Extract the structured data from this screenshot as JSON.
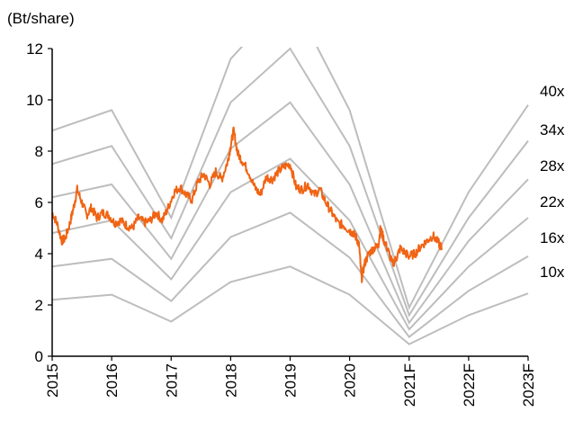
{
  "chart_data": {
    "type": "line",
    "title": "",
    "unit_label": "(Bt/share)",
    "xlabel": "",
    "ylabel": "",
    "ylim": [
      0,
      12
    ],
    "yticks": [
      0,
      2,
      4,
      6,
      8,
      10,
      12
    ],
    "categories": [
      "2015",
      "2016",
      "2017",
      "2018",
      "2019",
      "2020",
      "2021F",
      "2022F",
      "2023F"
    ],
    "grid": false,
    "legend": "none",
    "colors": {
      "price": "#f06414",
      "bands": "#bdbdbd",
      "axis": "#000000"
    },
    "pe_bands": [
      {
        "name": "40x",
        "values": [
          8.8,
          9.6,
          5.4,
          11.6,
          14.1,
          9.6,
          1.9,
          6.4,
          9.8
        ]
      },
      {
        "name": "34x",
        "values": [
          7.5,
          8.2,
          4.6,
          9.9,
          12.0,
          8.2,
          1.6,
          5.4,
          8.4
        ]
      },
      {
        "name": "28x",
        "values": [
          6.2,
          6.7,
          3.8,
          8.1,
          9.9,
          6.7,
          1.3,
          4.5,
          6.9
        ]
      },
      {
        "name": "22x",
        "values": [
          4.8,
          5.3,
          3.0,
          6.4,
          7.7,
          5.3,
          1.05,
          3.5,
          5.4
        ]
      },
      {
        "name": "16x",
        "values": [
          3.5,
          3.8,
          2.15,
          4.65,
          5.6,
          3.85,
          0.75,
          2.55,
          3.9
        ]
      },
      {
        "name": "10x",
        "values": [
          2.2,
          2.4,
          1.35,
          2.9,
          3.5,
          2.4,
          0.47,
          1.6,
          2.45
        ]
      }
    ],
    "price_series": {
      "x": [
        2015.0,
        2015.08,
        2015.16,
        2015.22,
        2015.3,
        2015.36,
        2015.42,
        2015.5,
        2015.58,
        2015.66,
        2015.75,
        2015.85,
        2015.95,
        2016.05,
        2016.15,
        2016.25,
        2016.35,
        2016.45,
        2016.55,
        2016.65,
        2016.75,
        2016.85,
        2016.95,
        2017.05,
        2017.15,
        2017.25,
        2017.35,
        2017.45,
        2017.55,
        2017.65,
        2017.75,
        2017.85,
        2017.95,
        2018.0,
        2018.05,
        2018.12,
        2018.2,
        2018.3,
        2018.4,
        2018.5,
        2018.6,
        2018.7,
        2018.8,
        2018.9,
        2019.0,
        2019.1,
        2019.2,
        2019.3,
        2019.4,
        2019.5,
        2019.6,
        2019.7,
        2019.8,
        2019.9,
        2020.0,
        2020.06,
        2020.12,
        2020.16,
        2020.2,
        2020.25,
        2020.32,
        2020.4,
        2020.48,
        2020.52,
        2020.58,
        2020.65,
        2020.72,
        2020.78,
        2020.85,
        2020.95,
        2021.0,
        2021.1,
        2021.2,
        2021.3,
        2021.4,
        2021.5,
        2021.55
      ],
      "y": [
        5.6,
        5.2,
        4.5,
        4.6,
        5.2,
        5.8,
        6.5,
        6.0,
        5.5,
        5.8,
        5.4,
        5.6,
        5.5,
        5.2,
        5.3,
        5.1,
        5.0,
        5.4,
        5.2,
        5.3,
        5.6,
        5.3,
        5.8,
        6.4,
        6.6,
        6.3,
        6.1,
        6.8,
        7.1,
        6.7,
        7.2,
        6.9,
        7.6,
        8.2,
        8.8,
        7.9,
        7.6,
        7.2,
        6.6,
        6.3,
        7.0,
        6.9,
        7.2,
        7.4,
        7.5,
        6.6,
        6.5,
        6.7,
        6.3,
        6.5,
        6.0,
        5.6,
        5.2,
        5.1,
        4.9,
        4.8,
        4.6,
        4.3,
        3.0,
        3.6,
        4.0,
        4.2,
        4.3,
        5.0,
        4.5,
        4.1,
        3.6,
        3.8,
        4.2,
        4.0,
        3.9,
        4.0,
        4.3,
        4.5,
        4.7,
        4.4,
        4.2
      ]
    }
  }
}
